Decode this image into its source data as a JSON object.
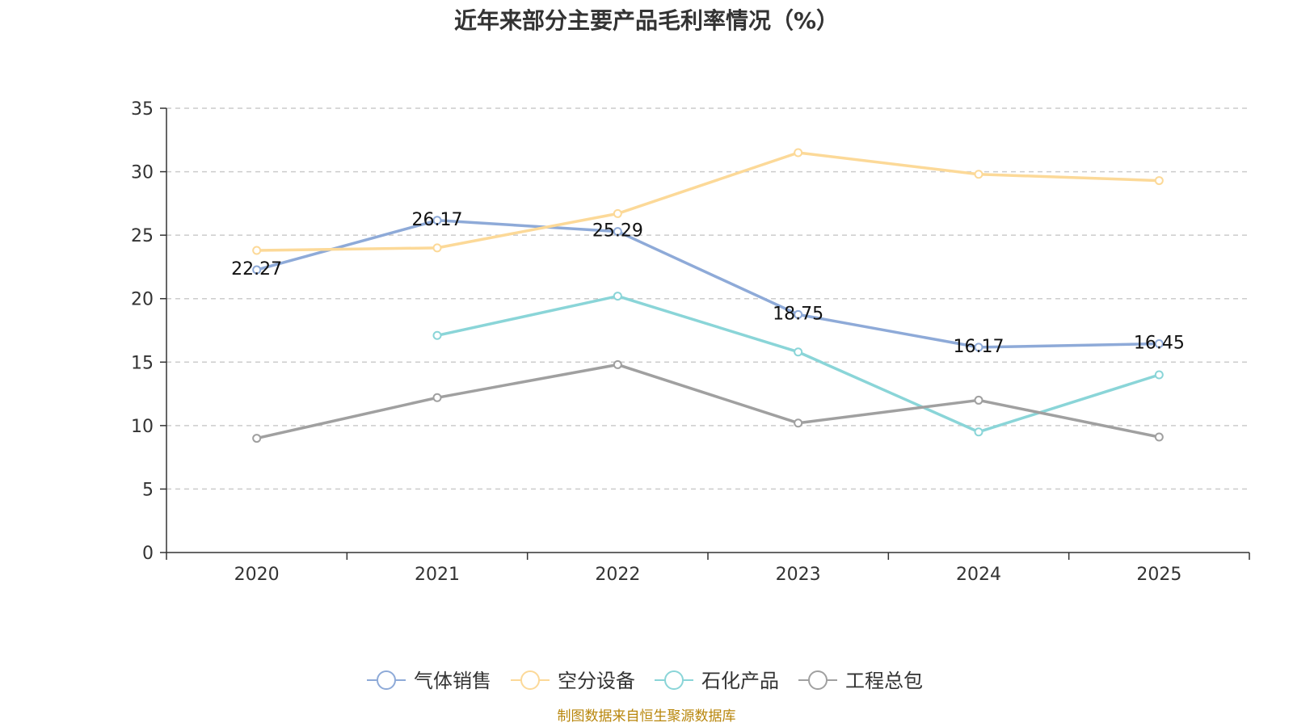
{
  "chart_data": {
    "type": "line",
    "title": "近年来部分主要产品毛利率情况（%）",
    "source": "制图数据来自恒生聚源数据库",
    "categories": [
      "2020",
      "2021",
      "2022",
      "2023",
      "2024",
      "2025"
    ],
    "ylim": [
      0,
      35
    ],
    "yticks": [
      0,
      5,
      10,
      15,
      20,
      25,
      30,
      35
    ],
    "grid": true,
    "legend_position": "bottom-center",
    "xlabel": "",
    "ylabel": "",
    "series": [
      {
        "name": "气体销售",
        "color": "#8eaad8",
        "values": [
          22.27,
          26.17,
          25.29,
          18.75,
          16.17,
          16.45
        ],
        "labels": [
          "22.27",
          "26.17",
          "25.29",
          "18.75",
          "16.17",
          "16.45"
        ]
      },
      {
        "name": "空分设备",
        "color": "#fcd998",
        "values": [
          23.8,
          24.0,
          26.7,
          31.5,
          29.8,
          29.3
        ]
      },
      {
        "name": "石化产品",
        "color": "#8ad5d8",
        "values": [
          null,
          17.1,
          20.2,
          15.8,
          9.5,
          14.0
        ]
      },
      {
        "name": "工程总包",
        "color": "#a0a0a0",
        "values": [
          9.0,
          12.2,
          14.8,
          10.2,
          12.0,
          9.1
        ]
      }
    ]
  }
}
